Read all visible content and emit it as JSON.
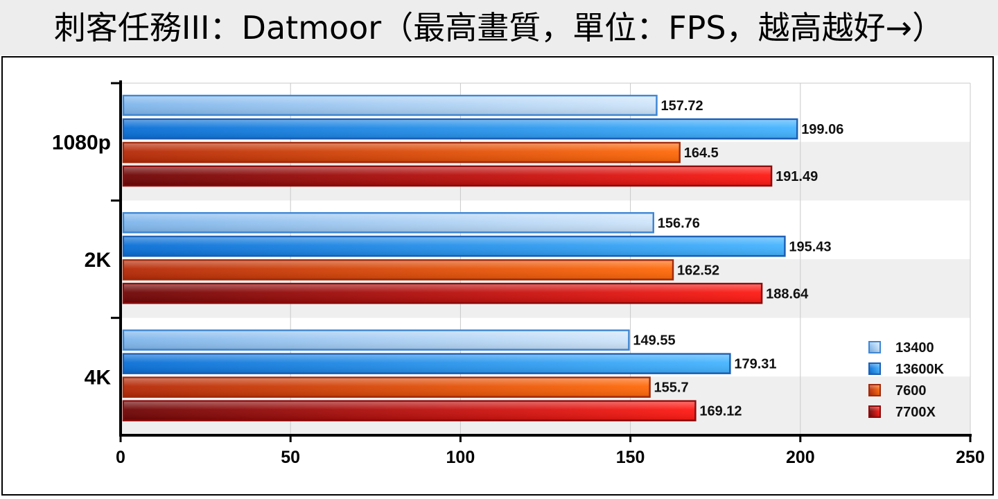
{
  "chart_data": {
    "type": "bar",
    "orientation": "horizontal",
    "title": "刺客任務III：Datmoor（最高畫質，單位：FPS，越高越好→）",
    "categories": [
      "1080p",
      "2K",
      "4K"
    ],
    "series": [
      {
        "name": "13400",
        "values": [
          157.72,
          156.76,
          149.55
        ],
        "color_light": "#cfe5fa",
        "color_dark": "#7fb6ec",
        "border": "#3d86d4"
      },
      {
        "name": "13600K",
        "values": [
          199.06,
          195.43,
          179.31
        ],
        "color_light": "#45b4ff",
        "color_dark": "#0a6fd6",
        "border": "#1b5fb5"
      },
      {
        "name": "7600",
        "values": [
          164.5,
          162.52,
          155.7
        ],
        "color_light": "#ff6a0a",
        "color_dark": "#b52a08",
        "border": "#a02a0c"
      },
      {
        "name": "7700X",
        "values": [
          191.49,
          188.64,
          169.12
        ],
        "color_light": "#ff1a14",
        "color_dark": "#6e0606",
        "border": "#8e0a0a"
      }
    ],
    "data_labels": [
      [
        "157.72",
        "199.06",
        "164.5",
        "191.49"
      ],
      [
        "156.76",
        "195.43",
        "162.52",
        "188.64"
      ],
      [
        "149.55",
        "179.31",
        "155.7",
        "169.12"
      ]
    ],
    "xlim": [
      0,
      250
    ],
    "xticks": [
      "0",
      "50",
      "100",
      "150",
      "200",
      "250"
    ],
    "grid": "vertical",
    "legend_position": "bottom-right"
  }
}
